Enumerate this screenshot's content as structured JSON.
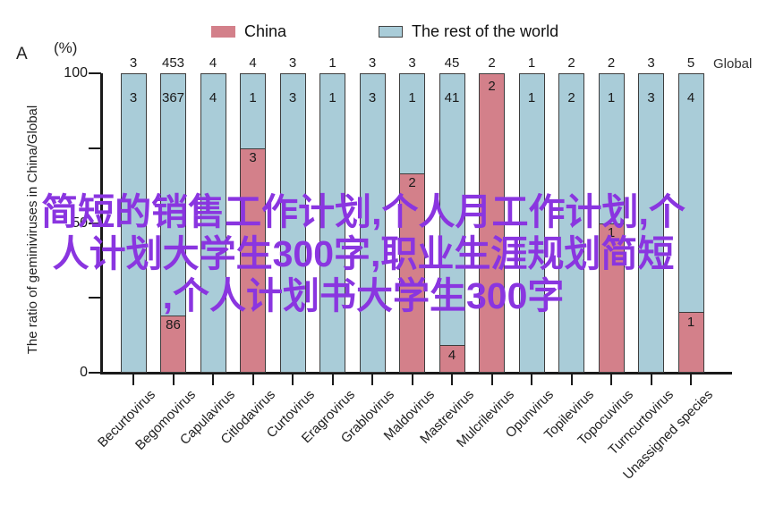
{
  "panel_label": "A",
  "legend": {
    "items": [
      {
        "label": "China",
        "color": "#D3808A"
      },
      {
        "label": "The rest of the world",
        "color": "#A9CCD8"
      }
    ]
  },
  "overlay": {
    "color": "#8A35E0",
    "lines": [
      "简短的销售工作计划,个人月工作计划,个",
      "人计划大学生300字,职业生涯规划简短",
      ",个人计划书大学生300字"
    ]
  },
  "chart_data": {
    "type": "bar",
    "stacked": true,
    "title": "",
    "panel_label": "A",
    "unit_label": "(%)",
    "right_label": "Global",
    "xlabel": "",
    "ylabel": "The ratio of geminiviruses in China/Global",
    "ylim": [
      0,
      100
    ],
    "ytick_labels": [
      {
        "value": 0,
        "label": "0"
      },
      {
        "value": 50,
        "label": "50"
      },
      {
        "value": 100,
        "label": "100"
      }
    ],
    "yticks_minor": [
      25,
      75
    ],
    "grid": false,
    "legend_position": "top",
    "categories": [
      "Becurtovirus",
      "Begomovirus",
      "Capulavirus",
      "Citlodavirus",
      "Curtovirus",
      "Eragrovirus",
      "Grablovirus",
      "Maldovirus",
      "Mastrevirus",
      "Mulcrilevirus",
      "Opunvirus",
      "Topilevirus",
      "Topocuvirus",
      "Turncurtovirus",
      "Unassigned species"
    ],
    "series": [
      {
        "name": "China",
        "color": "#D3808A",
        "values": [
          0,
          86,
          0,
          3,
          0,
          0,
          0,
          2,
          4,
          2,
          0,
          0,
          1,
          0,
          1
        ]
      },
      {
        "name": "The rest of the world",
        "color": "#A9CCD8",
        "values": [
          3,
          367,
          4,
          1,
          3,
          1,
          3,
          1,
          41,
          0,
          1,
          2,
          1,
          3,
          4
        ]
      }
    ],
    "totals": [
      3,
      453,
      4,
      4,
      3,
      1,
      3,
      3,
      45,
      2,
      1,
      2,
      2,
      3,
      5
    ]
  }
}
